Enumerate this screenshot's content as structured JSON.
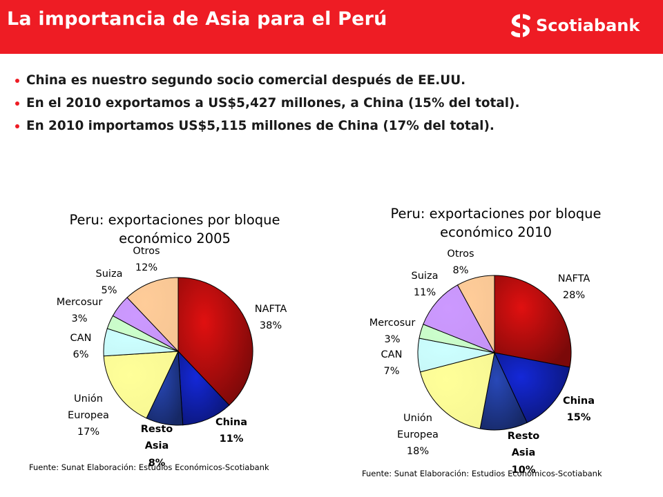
{
  "header": {
    "title": "La importancia de Asia para el Perú",
    "brand": "Scotiabank",
    "brand_color": "#ee1c24"
  },
  "bullets": [
    "China es nuestro segundo socio comercial después de EE.UU.",
    "En el 2010 exportamos a US$5,427 millones, a China (15% del total).",
    "En 2010 importamos US$5,115 millones de China (17% del total)."
  ],
  "chart_data": [
    {
      "type": "pie",
      "title": [
        "Peru: exportaciones por bloque",
        "económico 2005"
      ],
      "source": "Fuente: Sunat  Elaboración: Estudios Económicos-Scotiabank",
      "slices": [
        {
          "label": [
            "NAFTA",
            "38%"
          ],
          "value": 38,
          "color": "#e01010",
          "bold": false
        },
        {
          "label": [
            "China",
            "11%"
          ],
          "value": 11,
          "color": "#1428d8",
          "bold": true
        },
        {
          "label": [
            "Resto",
            "Asia",
            "8%"
          ],
          "value": 8,
          "color": "#2848b8",
          "bold": true
        },
        {
          "label": [
            "Unión",
            "Europea",
            "17%"
          ],
          "value": 17,
          "color": "#ffff99",
          "bold": false
        },
        {
          "label": [
            "CAN",
            "6%"
          ],
          "value": 6,
          "color": "#ccffff",
          "bold": false
        },
        {
          "label": [
            "Mercosur",
            "3%"
          ],
          "value": 3,
          "color": "#ccffcc",
          "bold": false
        },
        {
          "label": [
            "Suiza",
            "5%"
          ],
          "value": 5,
          "color": "#cc99ff",
          "bold": false
        },
        {
          "label": [
            "Otros",
            "12%"
          ],
          "value": 12,
          "color": "#ffcc99",
          "bold": false
        }
      ]
    },
    {
      "type": "pie",
      "title": [
        "Peru: exportaciones por bloque",
        "económico 2010"
      ],
      "source": "Fuente: Sunat  Elaboración: Estudios Económicos-Scotiabank",
      "slices": [
        {
          "label": [
            "NAFTA",
            "28%"
          ],
          "value": 28,
          "color": "#e01010",
          "bold": false
        },
        {
          "label": [
            "China",
            "15%"
          ],
          "value": 15,
          "color": "#1428d8",
          "bold": true
        },
        {
          "label": [
            "Resto",
            "Asia",
            "10%"
          ],
          "value": 10,
          "color": "#2848b8",
          "bold": true
        },
        {
          "label": [
            "Unión",
            "Europea",
            "18%"
          ],
          "value": 18,
          "color": "#ffff99",
          "bold": false
        },
        {
          "label": [
            "CAN",
            "7%"
          ],
          "value": 7,
          "color": "#ccffff",
          "bold": false
        },
        {
          "label": [
            "Mercosur",
            "3%"
          ],
          "value": 3,
          "color": "#ccffcc",
          "bold": false
        },
        {
          "label": [
            "Suiza",
            "11%"
          ],
          "value": 11,
          "color": "#cc99ff",
          "bold": false
        },
        {
          "label": [
            "Otros",
            "8%"
          ],
          "value": 8,
          "color": "#ffcc99",
          "bold": false
        }
      ]
    }
  ]
}
